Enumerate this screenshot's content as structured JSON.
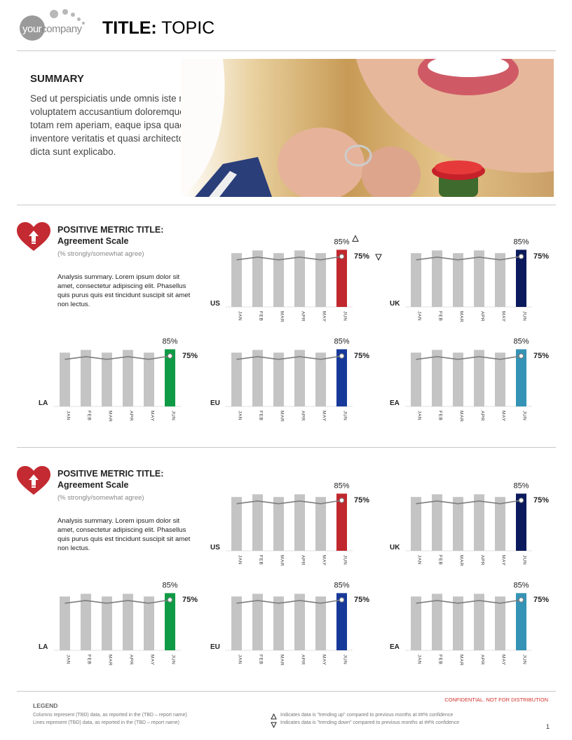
{
  "header": {
    "logo_your": "your",
    "logo_company": "company",
    "title_bold": "TITLE:",
    "title_rest": " TOPIC"
  },
  "summary": {
    "heading": "SUMMARY",
    "text": "Sed ut perspiciatis unde omnis iste natus error sit voluptatem accusantium doloremque laudantium, totam rem aperiam, eaque ipsa quae ab illo inventore veritatis et quasi architecto beatae vitae dicta sunt explicabo."
  },
  "sections": [
    {
      "title": "POSITIVE METRIC TITLE:",
      "subtitle": "Agreement Scale",
      "note": "(% strongly/somewhat agree)",
      "analysis": "Analysis summary. Lorem ipsum dolor sit amet, consectetur adipiscing elit. Phasellus quis purus quis est tincidunt suscipit sit amet non lectus."
    },
    {
      "title": "POSITIVE METRIC TITLE:",
      "subtitle": "Agreement Scale",
      "note": "(% strongly/somewhat agree)",
      "analysis": "Analysis summary. Lorem ipsum dolor sit amet, consectetur adipiscing elit. Phasellus quis purus quis est tincidunt suscipit sit amet non lectus."
    }
  ],
  "chart_data": [
    {
      "type": "bar",
      "section": 1,
      "region": "US",
      "categories": [
        "JAN",
        "FEB",
        "MAR",
        "APR",
        "MAY",
        "JUN"
      ],
      "values": [
        80,
        84,
        80,
        84,
        80,
        85
      ],
      "line": [
        70,
        74,
        70,
        74,
        70,
        75
      ],
      "bar_label": "85%",
      "line_label": "75%",
      "highlight_color": "#c0282e",
      "trend_up": true,
      "trend_down": true,
      "ylim": [
        0,
        100
      ]
    },
    {
      "type": "bar",
      "section": 1,
      "region": "UK",
      "categories": [
        "JAN",
        "FEB",
        "MAR",
        "APR",
        "MAY",
        "JUN"
      ],
      "values": [
        80,
        84,
        80,
        84,
        80,
        85
      ],
      "line": [
        70,
        74,
        70,
        74,
        70,
        75
      ],
      "bar_label": "85%",
      "line_label": "75%",
      "highlight_color": "#0a1a5c",
      "trend_up": false,
      "trend_down": false,
      "ylim": [
        0,
        100
      ]
    },
    {
      "type": "bar",
      "section": 1,
      "region": "LA",
      "categories": [
        "JAN",
        "FEB",
        "MAR",
        "APR",
        "MAY",
        "JUN"
      ],
      "values": [
        80,
        84,
        80,
        84,
        80,
        85
      ],
      "line": [
        70,
        74,
        70,
        74,
        70,
        75
      ],
      "bar_label": "85%",
      "line_label": "75%",
      "highlight_color": "#0f9b45",
      "trend_up": false,
      "trend_down": false,
      "ylim": [
        0,
        100
      ]
    },
    {
      "type": "bar",
      "section": 1,
      "region": "EU",
      "categories": [
        "JAN",
        "FEB",
        "MAR",
        "APR",
        "MAY",
        "JUN"
      ],
      "values": [
        80,
        84,
        80,
        84,
        80,
        85
      ],
      "line": [
        70,
        74,
        70,
        74,
        70,
        75
      ],
      "bar_label": "85%",
      "line_label": "75%",
      "highlight_color": "#17399a",
      "trend_up": false,
      "trend_down": false,
      "ylim": [
        0,
        100
      ]
    },
    {
      "type": "bar",
      "section": 1,
      "region": "EA",
      "categories": [
        "JAN",
        "FEB",
        "MAR",
        "APR",
        "MAY",
        "JUN"
      ],
      "values": [
        80,
        84,
        80,
        84,
        80,
        85
      ],
      "line": [
        70,
        74,
        70,
        74,
        70,
        75
      ],
      "bar_label": "85%",
      "line_label": "75%",
      "highlight_color": "#3593b5",
      "trend_up": false,
      "trend_down": false,
      "ylim": [
        0,
        100
      ]
    },
    {
      "type": "bar",
      "section": 2,
      "region": "US",
      "categories": [
        "JAN",
        "FEB",
        "MAR",
        "APR",
        "MAY",
        "JUN"
      ],
      "values": [
        80,
        84,
        80,
        84,
        80,
        85
      ],
      "line": [
        70,
        74,
        70,
        74,
        70,
        75
      ],
      "bar_label": "85%",
      "line_label": "75%",
      "highlight_color": "#c0282e",
      "trend_up": false,
      "trend_down": false,
      "ylim": [
        0,
        100
      ]
    },
    {
      "type": "bar",
      "section": 2,
      "region": "UK",
      "categories": [
        "JAN",
        "FEB",
        "MAR",
        "APR",
        "MAY",
        "JUN"
      ],
      "values": [
        80,
        84,
        80,
        84,
        80,
        85
      ],
      "line": [
        70,
        74,
        70,
        74,
        70,
        75
      ],
      "bar_label": "85%",
      "line_label": "75%",
      "highlight_color": "#0a1a5c",
      "trend_up": false,
      "trend_down": false,
      "ylim": [
        0,
        100
      ]
    },
    {
      "type": "bar",
      "section": 2,
      "region": "LA",
      "categories": [
        "JAN",
        "FEB",
        "MAR",
        "APR",
        "MAY",
        "JUN"
      ],
      "values": [
        80,
        84,
        80,
        84,
        80,
        85
      ],
      "line": [
        70,
        74,
        70,
        74,
        70,
        75
      ],
      "bar_label": "85%",
      "line_label": "75%",
      "highlight_color": "#0f9b45",
      "trend_up": false,
      "trend_down": false,
      "ylim": [
        0,
        100
      ]
    },
    {
      "type": "bar",
      "section": 2,
      "region": "EU",
      "categories": [
        "JAN",
        "FEB",
        "MAR",
        "APR",
        "MAY",
        "JUN"
      ],
      "values": [
        80,
        84,
        80,
        84,
        80,
        85
      ],
      "line": [
        70,
        74,
        70,
        74,
        70,
        75
      ],
      "bar_label": "85%",
      "line_label": "75%",
      "highlight_color": "#17399a",
      "trend_up": false,
      "trend_down": false,
      "ylim": [
        0,
        100
      ]
    },
    {
      "type": "bar",
      "section": 2,
      "region": "EA",
      "categories": [
        "JAN",
        "FEB",
        "MAR",
        "APR",
        "MAY",
        "JUN"
      ],
      "values": [
        80,
        84,
        80,
        84,
        80,
        85
      ],
      "line": [
        70,
        74,
        70,
        74,
        70,
        75
      ],
      "bar_label": "85%",
      "line_label": "75%",
      "highlight_color": "#3593b5",
      "trend_up": false,
      "trend_down": false,
      "ylim": [
        0,
        100
      ]
    }
  ],
  "legend": {
    "heading": "LEGEND",
    "columns_note": "Columns represent (TBD) data, as reported in the (TBD – report name)",
    "lines_note": "Lines represent (TBD) data, as reported in the (TBD – report name)",
    "up_note": "Indicates data is \"trending up\" compared to previous months at ##% confidence",
    "down_note": "Indicates data is \"trending down\" compared to previous months at ##% confidence"
  },
  "footer": {
    "confidential": "CONFIDENTIAL. NOT FOR DISTRIBUTION",
    "page_number": "1"
  }
}
